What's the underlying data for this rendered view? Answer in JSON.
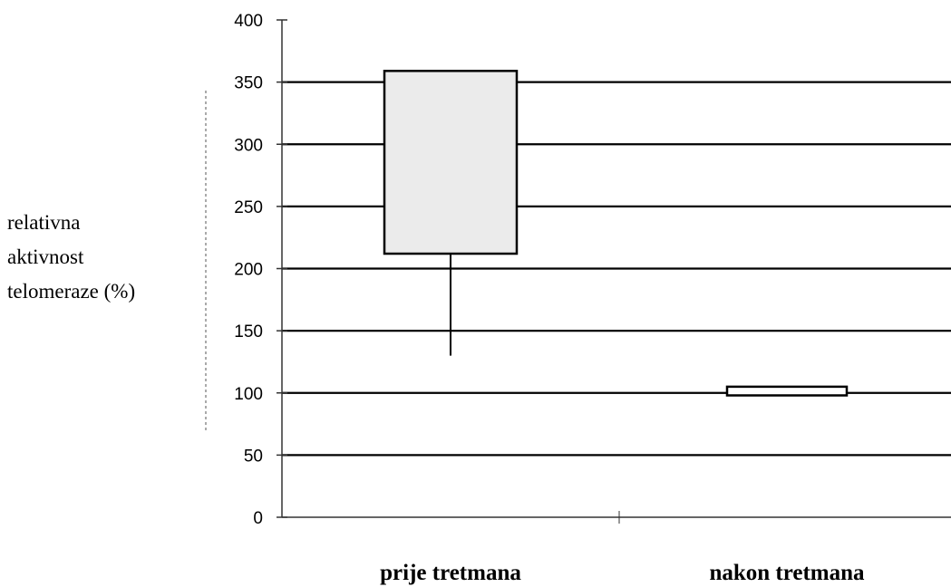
{
  "chart_data": {
    "type": "box",
    "title": "",
    "ylabel_lines": [
      "relativna",
      "aktivnost",
      "telomeraze (%)"
    ],
    "xlabel": "",
    "ylim": [
      0,
      400
    ],
    "yticks": [
      0,
      50,
      100,
      150,
      200,
      250,
      300,
      350,
      400
    ],
    "grid": true,
    "categories": [
      "prije tretmana",
      "nakon tretmana"
    ],
    "boxes": [
      {
        "category": "prije tretmana",
        "q1": 212,
        "q3": 359,
        "whisker_low": 130,
        "whisker_high": 359
      },
      {
        "category": "nakon tretmana",
        "q1": 98,
        "q3": 105,
        "whisker_low": 98,
        "whisker_high": 105
      }
    ],
    "colors": {
      "box_fill": "#ebebeb",
      "box_fill_2": "#ffffff",
      "line": "#000000",
      "axis": "#333333"
    }
  }
}
